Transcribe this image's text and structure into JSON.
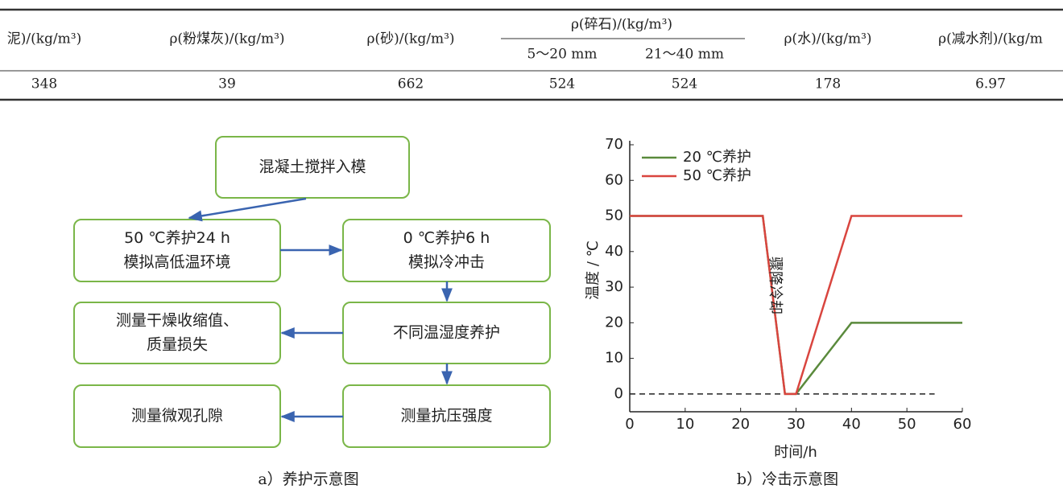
{
  "table": {
    "header_row": [
      "泥)/(kg/m³)",
      "ρ(粉煤灰)/(kg/m³)",
      "ρ(砂)/(kg/m³)",
      "ρ(碎石)/(kg/m³)",
      "ρ(水)/(kg/m³)",
      "ρ(减水剂)/(kg/m"
    ],
    "sub_header": [
      "5～20 mm",
      "21～40 mm"
    ],
    "row": [
      348,
      39,
      662,
      524,
      524,
      178,
      6.97
    ]
  },
  "flowchart": {
    "nodes": [
      {
        "lines": [
          "混凝土搅拌入模"
        ]
      },
      {
        "lines": [
          "50 ℃养护24 h",
          "模拟高低温环境"
        ]
      },
      {
        "lines": [
          "0 ℃养护6 h",
          "模拟冷冲击"
        ]
      },
      {
        "lines": [
          "测量干燥收缩值、",
          "质量损失"
        ]
      },
      {
        "lines": [
          "不同温湿度养护"
        ]
      },
      {
        "lines": [
          "测量微观孔隙"
        ]
      },
      {
        "lines": [
          "测量抗压强度"
        ]
      }
    ],
    "caption": "a）养护示意图"
  },
  "chart_data": {
    "type": "line",
    "caption": "b）冷击示意图",
    "x_label": "时间/h",
    "y_label": "温度 / ℃",
    "annotation": "骤降冷却",
    "x": [
      0,
      24,
      28,
      30,
      40,
      60
    ],
    "series": [
      {
        "name": "20 ℃养护",
        "color": "#5a8a3c",
        "values": [
          50,
          50,
          0,
          0,
          20,
          20
        ]
      },
      {
        "name": "50 ℃养护",
        "color": "#d9453f",
        "values": [
          50,
          50,
          0,
          0,
          50,
          50
        ]
      }
    ],
    "reference_line": {
      "y": 0,
      "x": [
        0,
        55
      ]
    },
    "xlim": [
      0,
      60
    ],
    "xticks": [
      0,
      10,
      20,
      30,
      40,
      50,
      60
    ],
    "ylim": [
      -5,
      70
    ],
    "yticks": [
      0,
      10,
      20,
      30,
      40,
      50,
      60,
      70
    ],
    "legend": "upper left"
  }
}
